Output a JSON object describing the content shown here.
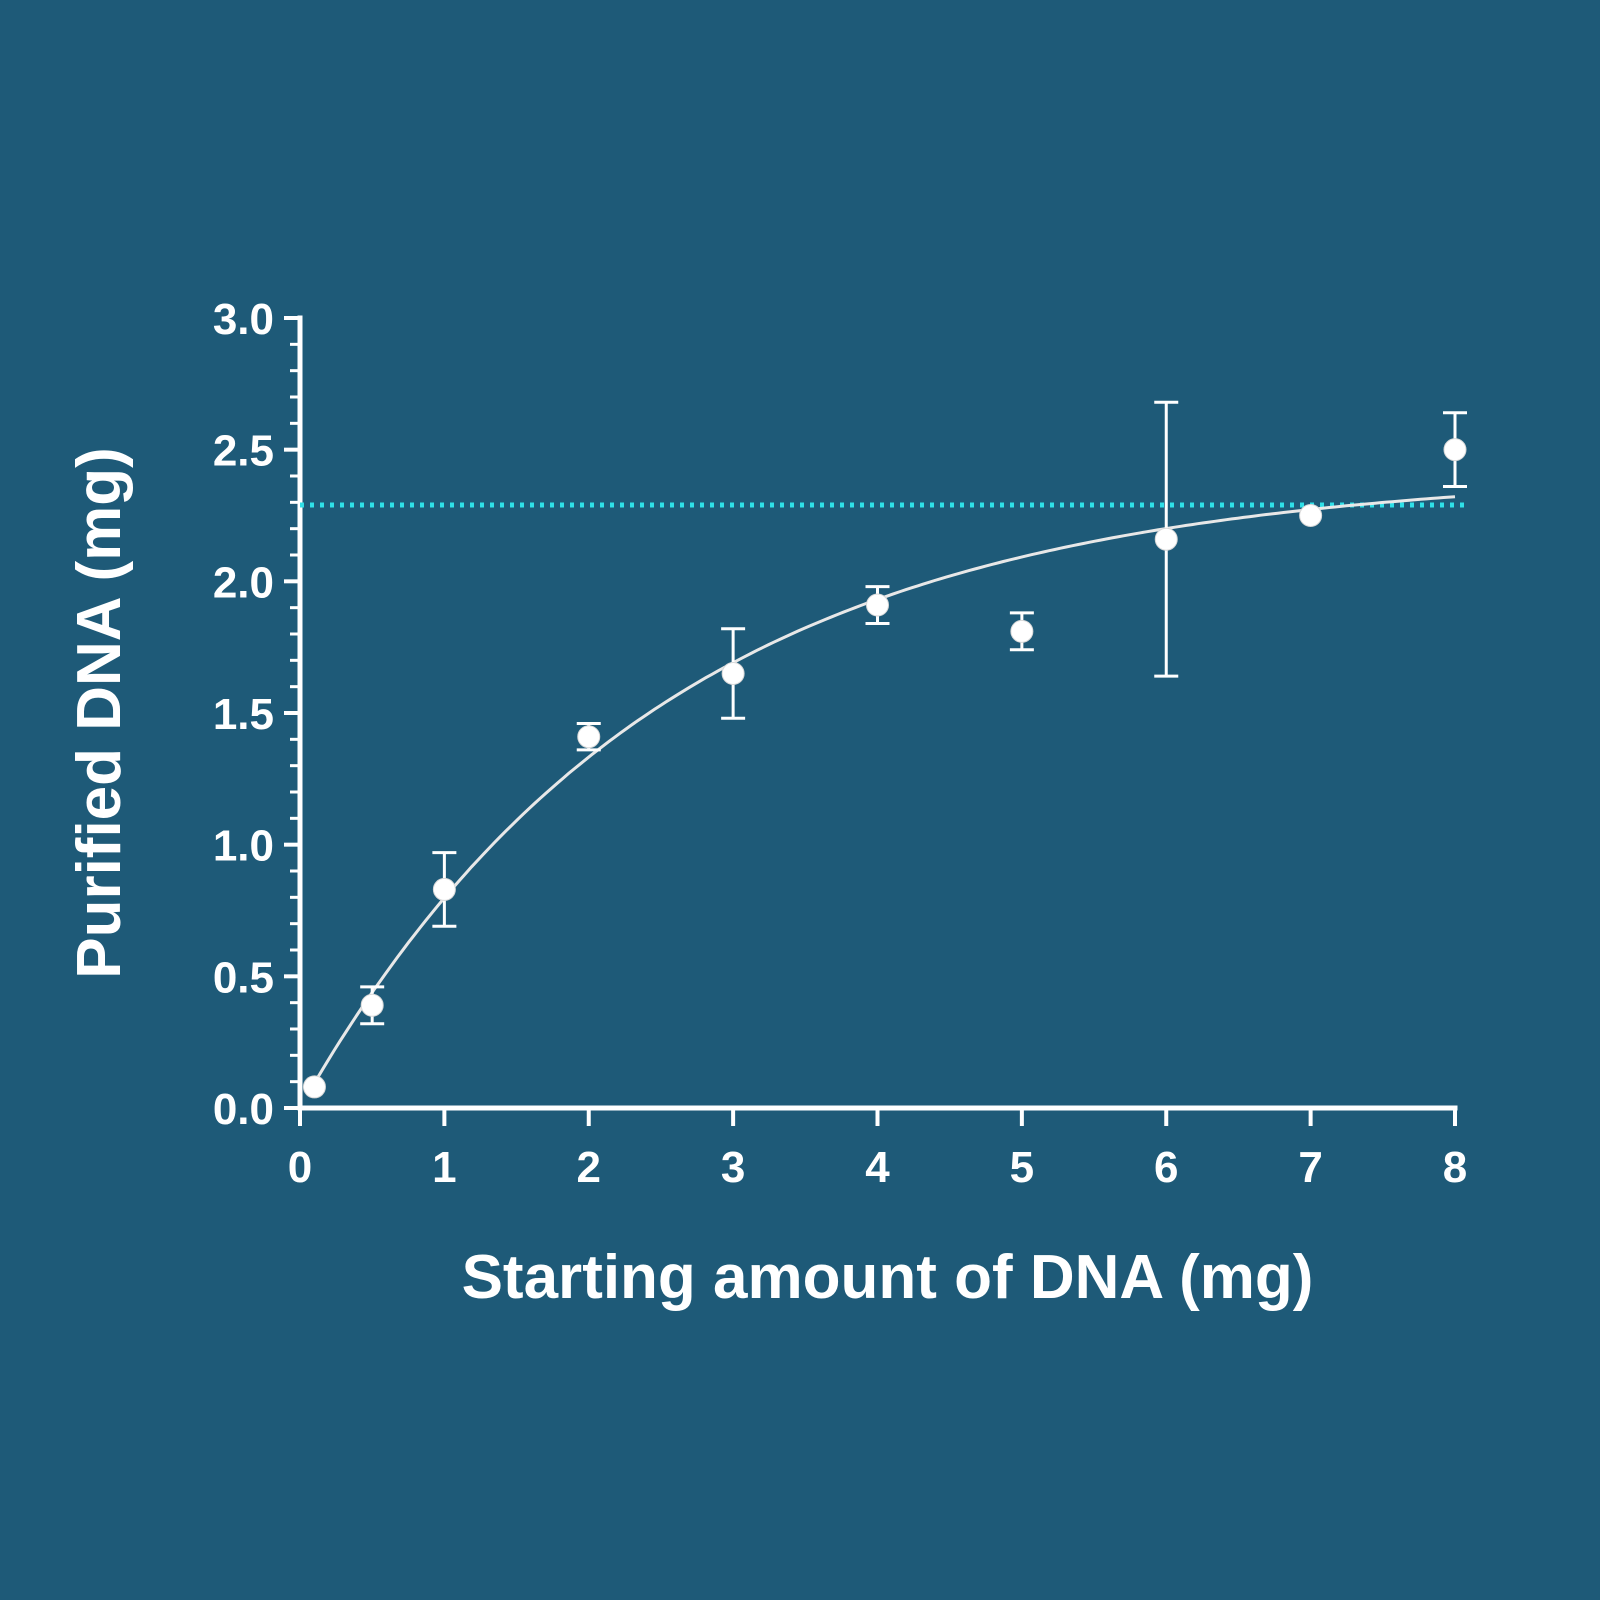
{
  "chart_data": {
    "type": "scatter",
    "xlabel": "Starting amount of DNA (mg)",
    "ylabel": "Purified DNA (mg)",
    "xlim": [
      0,
      8
    ],
    "ylim": [
      0,
      3.0
    ],
    "x_ticks": [
      "0",
      "1",
      "2",
      "3",
      "4",
      "5",
      "6",
      "7",
      "8"
    ],
    "y_ticks": [
      "0.0",
      "0.5",
      "1.0",
      "1.5",
      "2.0",
      "2.5",
      "3.0"
    ],
    "grid": false,
    "series": [
      {
        "points": [
          {
            "x": 0.1,
            "y": 0.08,
            "err": 0.0
          },
          {
            "x": 0.5,
            "y": 0.39,
            "err": 0.07
          },
          {
            "x": 1,
            "y": 0.83,
            "err": 0.14
          },
          {
            "x": 2,
            "y": 1.41,
            "err": 0.05
          },
          {
            "x": 3,
            "y": 1.65,
            "err": 0.17
          },
          {
            "x": 4,
            "y": 1.91,
            "err": 0.07
          },
          {
            "x": 5,
            "y": 1.81,
            "err": 0.07
          },
          {
            "x": 6,
            "y": 2.16,
            "err": 0.52
          },
          {
            "x": 7,
            "y": 2.25,
            "err": 0.0
          },
          {
            "x": 8,
            "y": 2.5,
            "err": 0.14
          }
        ]
      }
    ],
    "fit_curve": {
      "type": "one-phase association",
      "plateau": 2.42,
      "k": 0.4,
      "y0": 0.0
    },
    "reference_line": {
      "y": 2.29,
      "color": "#2fe0e8",
      "style": "dotted"
    },
    "colors": {
      "background": "#1e5a78",
      "foreground": "#ffffff",
      "reference": "#2fe0e8"
    }
  }
}
